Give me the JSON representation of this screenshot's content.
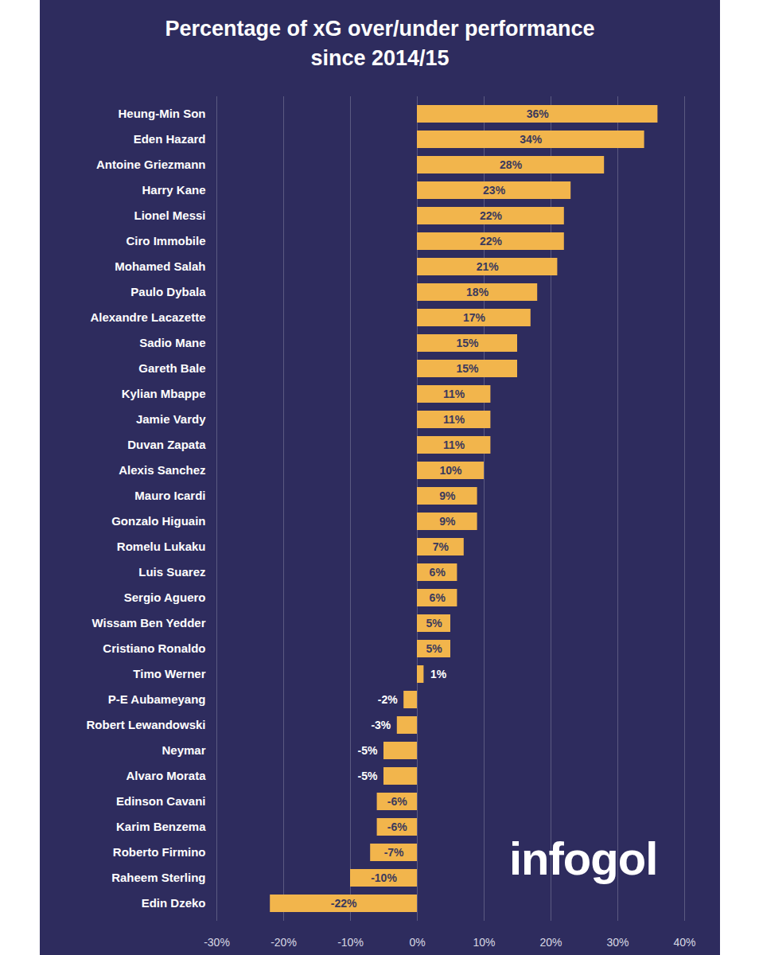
{
  "chart_data": {
    "type": "bar",
    "orientation": "horizontal",
    "title": "Percentage of xG over/under performance since 2014/15",
    "categories": [
      "Heung-Min Son",
      "Eden Hazard",
      "Antoine Griezmann",
      "Harry Kane",
      "Lionel Messi",
      "Ciro Immobile",
      "Mohamed Salah",
      "Paulo Dybala",
      "Alexandre Lacazette",
      "Sadio Mane",
      "Gareth Bale",
      "Kylian Mbappe",
      "Jamie Vardy",
      "Duvan Zapata",
      "Alexis Sanchez",
      "Mauro Icardi",
      "Gonzalo Higuain",
      "Romelu Lukaku",
      "Luis Suarez",
      "Sergio Aguero",
      "Wissam Ben Yedder",
      "Cristiano Ronaldo",
      "Timo Werner",
      "P-E Aubameyang",
      "Robert Lewandowski",
      "Neymar",
      "Alvaro Morata",
      "Edinson Cavani",
      "Karim Benzema",
      "Roberto Firmino",
      "Raheem Sterling",
      "Edin Dzeko"
    ],
    "values": [
      36,
      34,
      28,
      23,
      22,
      22,
      21,
      18,
      17,
      15,
      15,
      11,
      11,
      11,
      10,
      9,
      9,
      7,
      6,
      6,
      5,
      5,
      1,
      -2,
      -3,
      -5,
      -5,
      -6,
      -6,
      -7,
      -10,
      -22
    ],
    "value_labels": [
      "36%",
      "34%",
      "28%",
      "23%",
      "22%",
      "22%",
      "21%",
      "18%",
      "17%",
      "15%",
      "15%",
      "11%",
      "11%",
      "11%",
      "10%",
      "9%",
      "9%",
      "7%",
      "6%",
      "6%",
      "5%",
      "5%",
      "1%",
      "-2%",
      "-3%",
      "-5%",
      "-5%",
      "-6%",
      "-6%",
      "-7%",
      "-10%",
      "-22%"
    ],
    "color": "#f2b54c",
    "xlim": [
      -30,
      40
    ],
    "xticks": [
      {
        "value": -30,
        "label": "-30%"
      },
      {
        "value": -20,
        "label": "-20%"
      },
      {
        "value": -10,
        "label": "-10%"
      },
      {
        "value": 0,
        "label": "0%"
      },
      {
        "value": 10,
        "label": "10%"
      },
      {
        "value": 20,
        "label": "20%"
      },
      {
        "value": 30,
        "label": "30%"
      },
      {
        "value": 40,
        "label": "40%"
      }
    ],
    "grid": true,
    "data_labels": true,
    "annotations": [
      "infogol"
    ]
  }
}
